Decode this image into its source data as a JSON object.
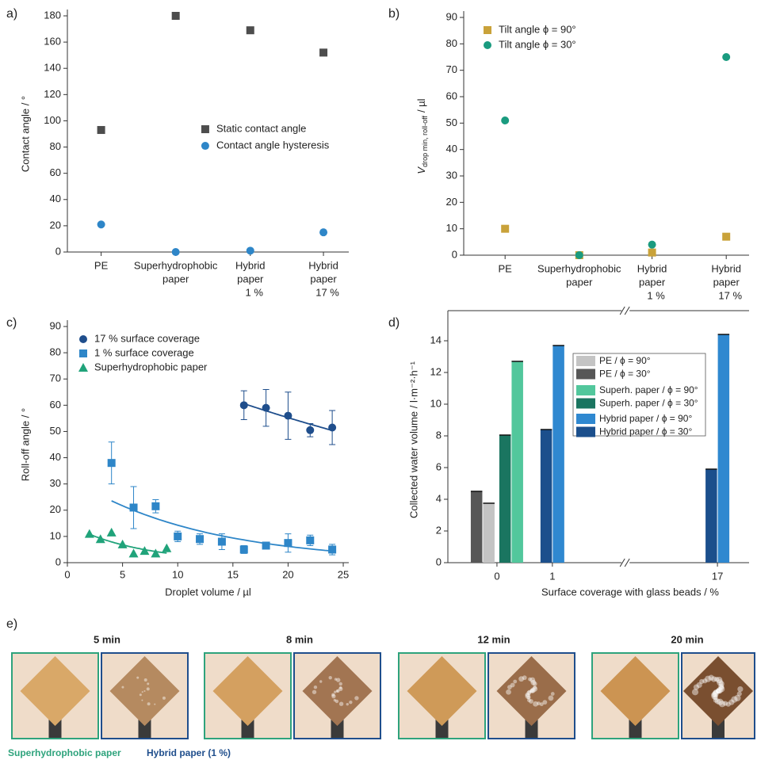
{
  "chart_data": [
    {
      "type": "scatter",
      "panel_label": "a)",
      "categories": [
        [
          "PE"
        ],
        [
          "Superhydrophobic",
          "paper"
        ],
        [
          "Hybrid",
          "paper",
          "1 %"
        ],
        [
          "Hybrid",
          "paper",
          "17 %"
        ]
      ],
      "ylabel": "Contact angle / °",
      "ylim": [
        0,
        180
      ],
      "yticks": [
        0,
        20,
        40,
        60,
        80,
        100,
        120,
        140,
        160,
        180
      ],
      "legend": "center right",
      "series": [
        {
          "name": "Static contact angle",
          "color": "#4d4d4d",
          "marker": "square",
          "values": [
            93,
            180,
            169,
            152
          ]
        },
        {
          "name": "Contact angle hysteresis",
          "color": "#2e86c8",
          "marker": "circle",
          "values": [
            21,
            0,
            1,
            15
          ]
        }
      ]
    },
    {
      "type": "scatter",
      "panel_label": "b)",
      "categories": [
        [
          "PE"
        ],
        [
          "Superhydrophobic",
          "paper"
        ],
        [
          "Hybrid",
          "paper",
          "1 %"
        ],
        [
          "Hybrid",
          "paper",
          "17 %"
        ]
      ],
      "ylabel": [
        "V",
        "drop min, roll-off",
        "/ µl"
      ],
      "ylim": [
        0,
        90
      ],
      "yticks": [
        0,
        10,
        20,
        30,
        40,
        50,
        60,
        70,
        80,
        90
      ],
      "legend": "upper left",
      "series": [
        {
          "name": "Tilt angle ϕ = 90°",
          "color": "#c9a23a",
          "marker": "square",
          "values": [
            10,
            0,
            1,
            7
          ]
        },
        {
          "name": "Tilt angle ϕ = 30°",
          "color": "#1a9b7f",
          "marker": "circle",
          "values": [
            51,
            0,
            4,
            75
          ]
        }
      ]
    },
    {
      "type": "scatter",
      "panel_label": "c)",
      "xlabel": "Droplet volume / µl",
      "ylabel": "Roll-off angle / °",
      "xlim": [
        0,
        25.5
      ],
      "xticks": [
        0,
        5,
        10,
        15,
        20,
        25
      ],
      "ylim": [
        0,
        90
      ],
      "yticks": [
        0,
        10,
        20,
        30,
        40,
        50,
        60,
        70,
        80,
        90
      ],
      "legend": "upper left",
      "series": [
        {
          "name": "17 % surface coverage",
          "color": "#1f4e8c",
          "marker": "circle",
          "fit": true,
          "x": [
            16,
            18,
            20,
            22,
            24
          ],
          "values": [
            60,
            59,
            56,
            50.5,
            51.5
          ],
          "errors": [
            5.5,
            7,
            9,
            2.5,
            6.5
          ]
        },
        {
          "name": "1 % surface coverage",
          "color": "#2e86c8",
          "marker": "square",
          "fit": true,
          "x": [
            4,
            6,
            8,
            10,
            12,
            14,
            16,
            18,
            20,
            22,
            24
          ],
          "values": [
            38,
            21,
            21.5,
            10,
            9,
            8,
            5,
            6.5,
            7.5,
            8.5,
            5
          ],
          "errors": [
            8,
            8,
            2.5,
            2,
            2,
            3,
            1.5,
            1,
            3.5,
            2,
            2
          ]
        },
        {
          "name": "Superhydrophobic paper",
          "color": "#20a37a",
          "marker": "triangle",
          "fit": true,
          "x": [
            2,
            3,
            4,
            5,
            6,
            7,
            8,
            9
          ],
          "values": [
            11,
            9,
            11.5,
            7,
            3.5,
            4.5,
            3.5,
            5.5
          ]
        }
      ]
    },
    {
      "type": "bar",
      "panel_label": "d)",
      "xlabel": "Surface coverage with glass beads / %",
      "ylabel": "Collected water volume / l·m⁻²·h⁻¹",
      "categories": [
        "0",
        "1",
        "17"
      ],
      "ylim": [
        0,
        15.5
      ],
      "yticks": [
        0,
        2,
        4,
        6,
        8,
        10,
        12,
        14
      ],
      "legend": "upper right",
      "series": [
        {
          "name": "PE / ϕ = 90°",
          "color": "#c4c4c4",
          "values": [
            3.75,
            null,
            null
          ]
        },
        {
          "name": "PE / ϕ = 30°",
          "color": "#575757",
          "values": [
            4.5,
            null,
            null
          ]
        },
        {
          "name": "Superh. paper / ϕ = 90°",
          "color": "#52c79c",
          "values": [
            12.7,
            null,
            null
          ]
        },
        {
          "name": "Superh. paper / ϕ = 30°",
          "color": "#1a7560",
          "values": [
            8.05,
            null,
            null
          ]
        },
        {
          "name": "Hybrid paper / ϕ = 90°",
          "color": "#2f88d0",
          "values": [
            null,
            13.7,
            14.4
          ]
        },
        {
          "name": "Hybrid paper / ϕ = 30°",
          "color": "#1b4f8c",
          "values": [
            null,
            8.4,
            5.9
          ]
        }
      ]
    }
  ],
  "panel_e": {
    "label": "e)",
    "times": [
      "5 min",
      "8 min",
      "12 min",
      "20 min"
    ],
    "captions": [
      "Superhydrophobic paper",
      "Hybrid paper (1 %)"
    ]
  }
}
